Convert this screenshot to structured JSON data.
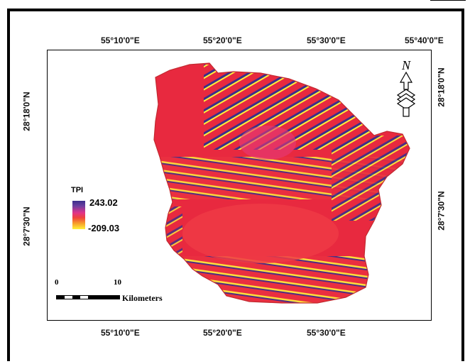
{
  "map": {
    "top_ticks": [
      "55°10'0\"E",
      "55°20'0\"E",
      "55°30'0\"E",
      "55°40'0\"E"
    ],
    "bottom_ticks": [
      "55°10'0\"E",
      "55°20'0\"E",
      "55°30'0\"E"
    ],
    "left_ticks": [
      "28°18'0\"N",
      "28°7'30\"N"
    ],
    "right_ticks": [
      "28°18'0\"N",
      "28°7'30\"N"
    ],
    "north_letter": "N",
    "colors": {
      "high": "#3b2f8c",
      "mid": "#e8293f",
      "low": "#fff23a"
    }
  },
  "legend": {
    "title": "TPI",
    "max": "243.02",
    "min": "-209.03"
  },
  "scale_bar": {
    "zero": "0",
    "ten": "10",
    "unit": "Kilometers"
  }
}
